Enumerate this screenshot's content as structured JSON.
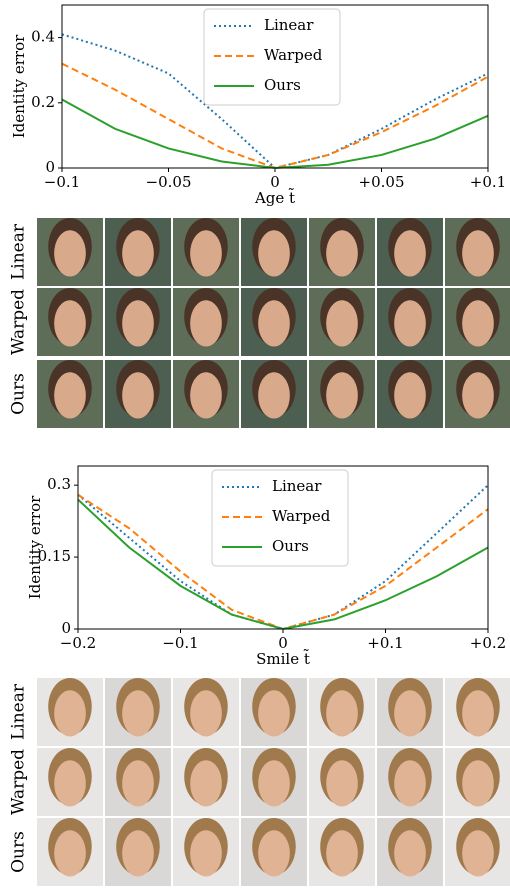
{
  "chart_data": [
    {
      "type": "line",
      "x_label": "Age t̃",
      "y_label": "Identity error",
      "x": [
        -0.1,
        -0.075,
        -0.05,
        -0.025,
        0,
        0.025,
        0.05,
        0.075,
        0.1
      ],
      "xlim": [
        -0.1,
        0.1
      ],
      "xticks": [
        {
          "value": -0.1,
          "label": "−0.1"
        },
        {
          "value": -0.05,
          "label": "−0.05"
        },
        0,
        {
          "value": 0.05,
          "label": "+0.05"
        },
        {
          "value": 0.1,
          "label": "+0.1"
        }
      ],
      "ylim": [
        0,
        0.5
      ],
      "yticks": [
        0,
        0.2,
        0.4
      ],
      "legend": "upper center",
      "series": [
        {
          "name": "Linear",
          "color": "#1f77b4",
          "style": "dotted",
          "values": [
            0.41,
            0.36,
            0.29,
            0.15,
            0,
            0.04,
            0.12,
            0.21,
            0.29
          ]
        },
        {
          "name": "Warped",
          "color": "#ff7f0e",
          "style": "dashed",
          "values": [
            0.32,
            0.24,
            0.15,
            0.06,
            0,
            0.04,
            0.11,
            0.19,
            0.28
          ]
        },
        {
          "name": "Ours",
          "color": "#2ca02c",
          "style": "solid",
          "values": [
            0.21,
            0.12,
            0.06,
            0.02,
            0,
            0.01,
            0.04,
            0.09,
            0.16
          ]
        }
      ]
    },
    {
      "type": "line",
      "x_label": "Smile t̃",
      "y_label": "Identity error",
      "x": [
        -0.2,
        -0.15,
        -0.1,
        -0.05,
        0,
        0.05,
        0.1,
        0.15,
        0.2
      ],
      "xlim": [
        -0.2,
        0.2
      ],
      "xticks": [
        {
          "value": -0.2,
          "label": "−0.2"
        },
        {
          "value": -0.1,
          "label": "−0.1"
        },
        0,
        {
          "value": 0.1,
          "label": "+0.1"
        },
        {
          "value": 0.2,
          "label": "+0.2"
        }
      ],
      "ylim": [
        0,
        0.34
      ],
      "yticks": [
        0,
        0.15,
        0.3
      ],
      "legend": "upper center",
      "series": [
        {
          "name": "Linear",
          "color": "#1f77b4",
          "style": "dotted",
          "values": [
            0.28,
            0.19,
            0.1,
            0.03,
            0,
            0.03,
            0.1,
            0.2,
            0.3
          ]
        },
        {
          "name": "Warped",
          "color": "#ff7f0e",
          "style": "dashed",
          "values": [
            0.28,
            0.21,
            0.12,
            0.04,
            0,
            0.03,
            0.09,
            0.17,
            0.25
          ]
        },
        {
          "name": "Ours",
          "color": "#2ca02c",
          "style": "solid",
          "values": [
            0.27,
            0.17,
            0.09,
            0.03,
            0,
            0.02,
            0.06,
            0.11,
            0.17
          ]
        }
      ]
    }
  ],
  "image_grids": [
    {
      "rows": [
        "Linear",
        "Warped",
        "Ours"
      ]
    },
    {
      "rows": [
        "Linear",
        "Warped",
        "Ours"
      ]
    }
  ]
}
